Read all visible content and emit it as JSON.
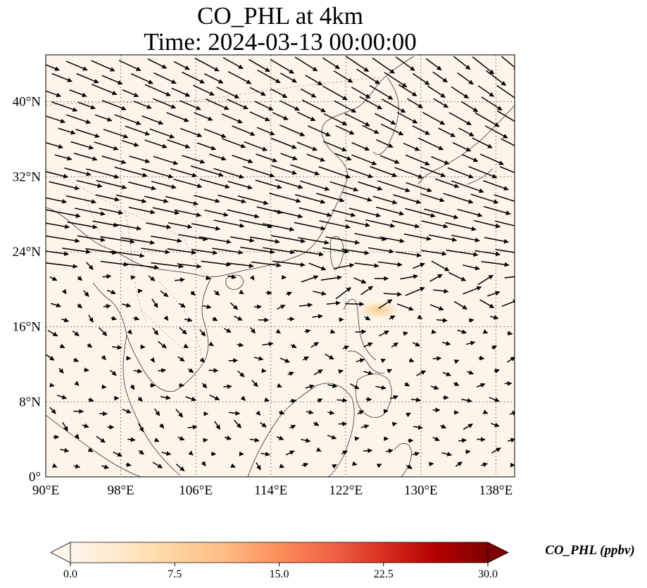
{
  "title_line1": "CO_PHL at 4km",
  "title_line2": "Time: 2024-03-13 00:00:00",
  "map": {
    "variable": "CO_PHL",
    "level": "4km",
    "lon_range": [
      90,
      140
    ],
    "lat_range": [
      0,
      45
    ],
    "lon_ticks": [
      {
        "value": 90,
        "label": "90°E"
      },
      {
        "value": 98,
        "label": "98°E"
      },
      {
        "value": 106,
        "label": "106°E"
      },
      {
        "value": 114,
        "label": "114°E"
      },
      {
        "value": 122,
        "label": "122°E"
      },
      {
        "value": 130,
        "label": "130°E"
      },
      {
        "value": 138,
        "label": "138°E"
      }
    ],
    "lat_ticks": [
      {
        "value": 0,
        "label": "0°"
      },
      {
        "value": 8,
        "label": "8°N"
      },
      {
        "value": 16,
        "label": "16°N"
      },
      {
        "value": 24,
        "label": "24°N"
      },
      {
        "value": 32,
        "label": "32°N"
      },
      {
        "value": 40,
        "label": "40°N"
      }
    ],
    "gridlines": "dotted",
    "background_color": "#fdf5ea",
    "plume": {
      "lon": 125.5,
      "lat": 17.8,
      "peak_ppbv": 6
    }
  },
  "colorbar": {
    "label": "CO_PHL (ppbv)",
    "min": 0.0,
    "max": 30.0,
    "extend": "both",
    "colormap": "OrRd",
    "colors": [
      "#fff7ec",
      "#fee8c8",
      "#fdd49e",
      "#fdbb84",
      "#fc8d59",
      "#ef6548",
      "#d7301f",
      "#b30000",
      "#7f0000"
    ],
    "ticks": [
      "0.0",
      "7.5",
      "15.0",
      "22.5",
      "30.0"
    ]
  }
}
